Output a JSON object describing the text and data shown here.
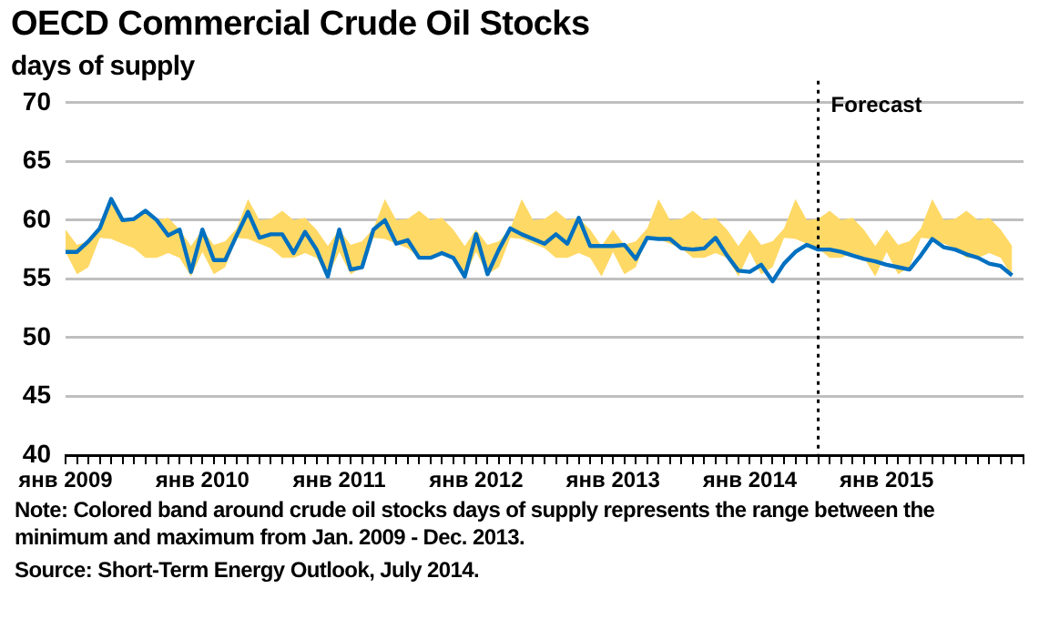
{
  "chart_data": {
    "type": "line",
    "title": "OECD Commercial Crude Oil Stocks",
    "ylabel": "days of supply",
    "annotations": [
      "Note:  Colored band around crude oil stocks days of supply represents the range between the minimum and maximum from Jan. 2009 - Dec. 2013.",
      "Source:  Short-Term Energy Outlook, July 2014."
    ],
    "x": [
      "2009-01",
      "2009-02",
      "2009-03",
      "2009-04",
      "2009-05",
      "2009-06",
      "2009-07",
      "2009-08",
      "2009-09",
      "2009-10",
      "2009-11",
      "2009-12",
      "2010-01",
      "2010-02",
      "2010-03",
      "2010-04",
      "2010-05",
      "2010-06",
      "2010-07",
      "2010-08",
      "2010-09",
      "2010-10",
      "2010-11",
      "2010-12",
      "2011-01",
      "2011-02",
      "2011-03",
      "2011-04",
      "2011-05",
      "2011-06",
      "2011-07",
      "2011-08",
      "2011-09",
      "2011-10",
      "2011-11",
      "2011-12",
      "2012-01",
      "2012-02",
      "2012-03",
      "2012-04",
      "2012-05",
      "2012-06",
      "2012-07",
      "2012-08",
      "2012-09",
      "2012-10",
      "2012-11",
      "2012-12",
      "2013-01",
      "2013-02",
      "2013-03",
      "2013-04",
      "2013-05",
      "2013-06",
      "2013-07",
      "2013-08",
      "2013-09",
      "2013-10",
      "2013-11",
      "2013-12",
      "2014-01",
      "2014-02",
      "2014-03",
      "2014-04",
      "2014-05",
      "2014-06",
      "2014-07",
      "2014-08",
      "2014-09",
      "2014-10",
      "2014-11",
      "2014-12",
      "2015-01",
      "2015-02",
      "2015-03",
      "2015-04",
      "2015-05",
      "2015-06",
      "2015-07",
      "2015-08",
      "2015-09",
      "2015-10",
      "2015-11",
      "2015-12"
    ],
    "series": [
      {
        "color": "#0070c0",
        "values": [
          57.3,
          57.3,
          58.2,
          59.3,
          61.8,
          60.0,
          60.1,
          60.8,
          60.0,
          58.7,
          59.2,
          55.6,
          59.2,
          56.6,
          56.6,
          58.7,
          60.7,
          58.5,
          58.8,
          58.8,
          57.2,
          59.0,
          57.5,
          55.2,
          59.2,
          55.8,
          56.0,
          59.2,
          60.0,
          58.0,
          58.3,
          56.8,
          56.8,
          57.2,
          56.8,
          55.2,
          58.8,
          55.4,
          57.5,
          59.3,
          58.8,
          58.4,
          58.0,
          58.8,
          58.0,
          60.2,
          57.8,
          57.8,
          57.8,
          57.9,
          56.7,
          58.5,
          58.4,
          58.4,
          57.6,
          57.5,
          57.6,
          58.5,
          57.0,
          55.7,
          55.6,
          56.2,
          54.8,
          56.3,
          57.3,
          57.9,
          57.5,
          57.5,
          57.3,
          57.0,
          56.7,
          56.5,
          56.2,
          56.0,
          55.8,
          57.0,
          58.4,
          57.7,
          57.5,
          57.1,
          56.8,
          56.3,
          56.1,
          55.3
        ],
        "lower": [
          57.3,
          55.4,
          56.0,
          58.5,
          58.4,
          58.0,
          57.6,
          56.8,
          56.8,
          57.2,
          56.8,
          55.2,
          57.3,
          55.4,
          56.0,
          58.5,
          58.4,
          58.0,
          57.6,
          56.8,
          56.8,
          57.2,
          56.8,
          55.2,
          57.3,
          55.4,
          56.0,
          58.5,
          58.4,
          58.0,
          57.6,
          56.8,
          56.8,
          57.2,
          56.8,
          55.2,
          57.3,
          55.4,
          56.0,
          58.5,
          58.4,
          58.0,
          57.6,
          56.8,
          56.8,
          57.2,
          56.8,
          55.2,
          57.3,
          55.4,
          56.0,
          58.5,
          58.4,
          58.0,
          57.6,
          56.8,
          56.8,
          57.2,
          56.8,
          55.2,
          57.3,
          55.4,
          56.0,
          58.5,
          58.4,
          58.0,
          57.6,
          56.8,
          56.8,
          57.2,
          56.8,
          55.2,
          57.3,
          55.4,
          56.0,
          58.5,
          58.4,
          58.0,
          57.6,
          56.8,
          56.8,
          57.2,
          56.8,
          55.2
        ],
        "upper": [
          59.2,
          57.9,
          58.2,
          59.3,
          61.8,
          60.0,
          60.1,
          60.8,
          60.0,
          60.2,
          59.2,
          57.8,
          59.2,
          57.9,
          58.2,
          59.3,
          61.8,
          60.0,
          60.1,
          60.8,
          60.0,
          60.2,
          59.2,
          57.8,
          59.2,
          57.9,
          58.2,
          59.3,
          61.8,
          60.0,
          60.1,
          60.8,
          60.0,
          60.2,
          59.2,
          57.8,
          59.2,
          57.9,
          58.2,
          59.3,
          61.8,
          60.0,
          60.1,
          60.8,
          60.0,
          60.2,
          59.2,
          57.8,
          59.2,
          57.9,
          58.2,
          59.3,
          61.8,
          60.0,
          60.1,
          60.8,
          60.0,
          60.2,
          59.2,
          57.8,
          59.2,
          57.9,
          58.2,
          59.3,
          61.8,
          60.0,
          60.1,
          60.8,
          60.0,
          60.2,
          59.2,
          57.8,
          59.2,
          57.9,
          58.2,
          59.3,
          61.8,
          60.0,
          60.1,
          60.8,
          60.0,
          60.2,
          59.2,
          57.8
        ]
      }
    ],
    "xlim": [
      "2009-01",
      "2016-01"
    ],
    "xticks": [
      {
        "value": "2009-01",
        "label": "янв 2009"
      },
      {
        "value": "2009-02",
        "label": null
      },
      {
        "value": "2009-03",
        "label": null
      },
      {
        "value": "2009-04",
        "label": null
      },
      {
        "value": "2009-05",
        "label": null
      },
      {
        "value": "2009-06",
        "label": null
      },
      {
        "value": "2009-07",
        "label": null
      },
      {
        "value": "2009-08",
        "label": null
      },
      {
        "value": "2009-09",
        "label": null
      },
      {
        "value": "2009-10",
        "label": null
      },
      {
        "value": "2009-11",
        "label": null
      },
      {
        "value": "2009-12",
        "label": null
      },
      {
        "value": "2010-01",
        "label": "янв 2010"
      },
      {
        "value": "2010-02",
        "label": null
      },
      {
        "value": "2010-03",
        "label": null
      },
      {
        "value": "2010-04",
        "label": null
      },
      {
        "value": "2010-05",
        "label": null
      },
      {
        "value": "2010-06",
        "label": null
      },
      {
        "value": "2010-07",
        "label": null
      },
      {
        "value": "2010-08",
        "label": null
      },
      {
        "value": "2010-09",
        "label": null
      },
      {
        "value": "2010-10",
        "label": null
      },
      {
        "value": "2010-11",
        "label": null
      },
      {
        "value": "2010-12",
        "label": null
      },
      {
        "value": "2011-01",
        "label": "янв 2011"
      },
      {
        "value": "2011-02",
        "label": null
      },
      {
        "value": "2011-03",
        "label": null
      },
      {
        "value": "2011-04",
        "label": null
      },
      {
        "value": "2011-05",
        "label": null
      },
      {
        "value": "2011-06",
        "label": null
      },
      {
        "value": "2011-07",
        "label": null
      },
      {
        "value": "2011-08",
        "label": null
      },
      {
        "value": "2011-09",
        "label": null
      },
      {
        "value": "2011-10",
        "label": null
      },
      {
        "value": "2011-11",
        "label": null
      },
      {
        "value": "2011-12",
        "label": null
      },
      {
        "value": "2012-01",
        "label": "янв 2012"
      },
      {
        "value": "2012-02",
        "label": null
      },
      {
        "value": "2012-03",
        "label": null
      },
      {
        "value": "2012-04",
        "label": null
      },
      {
        "value": "2012-05",
        "label": null
      },
      {
        "value": "2012-06",
        "label": null
      },
      {
        "value": "2012-07",
        "label": null
      },
      {
        "value": "2012-08",
        "label": null
      },
      {
        "value": "2012-09",
        "label": null
      },
      {
        "value": "2012-10",
        "label": null
      },
      {
        "value": "2012-11",
        "label": null
      },
      {
        "value": "2012-12",
        "label": null
      },
      {
        "value": "2013-01",
        "label": "янв 2013"
      },
      {
        "value": "2013-02",
        "label": null
      },
      {
        "value": "2013-03",
        "label": null
      },
      {
        "value": "2013-04",
        "label": null
      },
      {
        "value": "2013-05",
        "label": null
      },
      {
        "value": "2013-06",
        "label": null
      },
      {
        "value": "2013-07",
        "label": null
      },
      {
        "value": "2013-08",
        "label": null
      },
      {
        "value": "2013-09",
        "label": null
      },
      {
        "value": "2013-10",
        "label": null
      },
      {
        "value": "2013-11",
        "label": null
      },
      {
        "value": "2013-12",
        "label": null
      },
      {
        "value": "2014-01",
        "label": "янв 2014"
      },
      {
        "value": "2014-02",
        "label": null
      },
      {
        "value": "2014-03",
        "label": null
      },
      {
        "value": "2014-04",
        "label": null
      },
      {
        "value": "2014-05",
        "label": null
      },
      {
        "value": "2014-06",
        "label": null
      },
      {
        "value": "2014-07",
        "label": null
      },
      {
        "value": "2014-08",
        "label": null
      },
      {
        "value": "2014-09",
        "label": null
      },
      {
        "value": "2014-10",
        "label": null
      },
      {
        "value": "2014-11",
        "label": null
      },
      {
        "value": "2014-12",
        "label": null
      },
      {
        "value": "2015-01",
        "label": "янв 2015"
      },
      {
        "value": "2015-02",
        "label": null
      },
      {
        "value": "2015-03",
        "label": null
      },
      {
        "value": "2015-04",
        "label": null
      },
      {
        "value": "2015-05",
        "label": null
      },
      {
        "value": "2015-06",
        "label": null
      },
      {
        "value": "2015-07",
        "label": null
      },
      {
        "value": "2015-08",
        "label": null
      },
      {
        "value": "2015-09",
        "label": null
      },
      {
        "value": "2015-10",
        "label": null
      },
      {
        "value": "2015-11",
        "label": null
      },
      {
        "value": "2015-12",
        "label": null
      },
      {
        "value": "2016-01",
        "label": null
      }
    ],
    "ylim": [
      40,
      70
    ],
    "yticks": [
      40,
      45,
      50,
      55,
      60,
      65,
      70
    ],
    "ref_lines": [
      {
        "axis": "x",
        "value": "2014-07",
        "label": "Forecast",
        "line_style": "dotted",
        "color": "#000000"
      }
    ],
    "grid": "y",
    "legend": false,
    "marker": "none",
    "line_style": "solid"
  }
}
